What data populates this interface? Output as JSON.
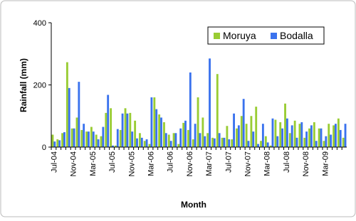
{
  "chart_data": {
    "type": "bar",
    "x_label": "Month",
    "y_label": "Rainfall (mm)",
    "categories": [
      "Jul-04",
      null,
      null,
      null,
      "Nov-04",
      null,
      null,
      null,
      "Mar-05",
      null,
      null,
      null,
      "Jul-05",
      null,
      null,
      null,
      "Nov-05",
      null,
      null,
      null,
      "Mar-06",
      null,
      null,
      null,
      "Jul-06",
      null,
      null,
      null,
      "Nov-06",
      null,
      null,
      null,
      "Mar-07",
      null,
      null,
      null,
      "Jul-07",
      null,
      null,
      null,
      "Nov-07",
      null,
      null,
      null,
      "Mar-08",
      null,
      null,
      null,
      "Jul-08",
      null,
      null,
      null,
      "Nov-08",
      null,
      null,
      null,
      "Mar-09",
      null,
      null,
      null,
      null
    ],
    "series": [
      {
        "name": "Moruya",
        "color": "#99cc33",
        "values": [
          40,
          25,
          45,
          273,
          60,
          95,
          55,
          50,
          65,
          40,
          35,
          110,
          125,
          5,
          55,
          125,
          110,
          85,
          45,
          20,
          10,
          160,
          105,
          80,
          40,
          45,
          10,
          78,
          55,
          25,
          160,
          95,
          45,
          30,
          235,
          30,
          68,
          25,
          60,
          100,
          75,
          100,
          130,
          20,
          35,
          5,
          88,
          80,
          140,
          45,
          85,
          75,
          30,
          60,
          80,
          60,
          20,
          75,
          70,
          92,
          30
        ]
      },
      {
        "name": "Bodalla",
        "color": "#3a72ee",
        "values": [
          18,
          22,
          48,
          190,
          60,
          210,
          75,
          50,
          50,
          25,
          65,
          168,
          5,
          58,
          108,
          108,
          50,
          28,
          30,
          25,
          160,
          122,
          95,
          45,
          20,
          45,
          60,
          85,
          240,
          75,
          45,
          35,
          285,
          28,
          45,
          30,
          25,
          108,
          70,
          155,
          20,
          50,
          10,
          75,
          15,
          92,
          35,
          60,
          92,
          70,
          30,
          80,
          50,
          70,
          20,
          60,
          35,
          40,
          75,
          55,
          75
        ]
      }
    ],
    "ylim": [
      0,
      400
    ],
    "yticks": [
      0,
      200,
      400
    ],
    "grid": false,
    "legend": "top-right"
  }
}
